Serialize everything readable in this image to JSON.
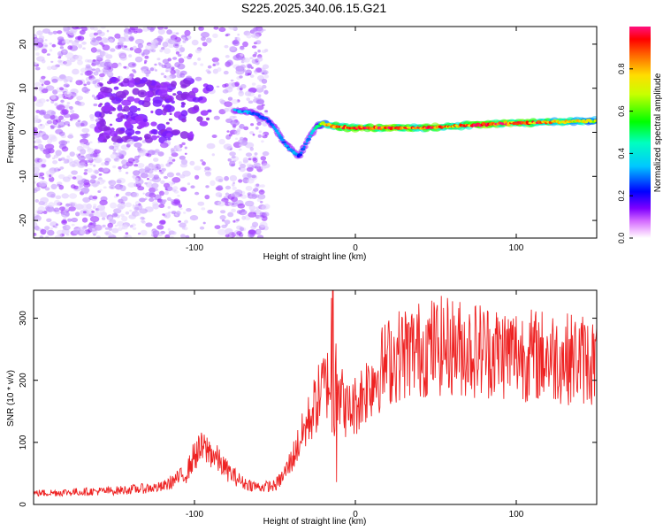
{
  "figure_title": "S225.2025.340.06.15.G21",
  "chart_data": [
    {
      "type": "heatmap",
      "title": "",
      "xlabel": "Height of straight line (km)",
      "ylabel": "Frequency (Hz)",
      "xlim": [
        -200,
        150
      ],
      "ylim": [
        -24,
        24
      ],
      "xticks": [
        -100,
        0,
        100
      ],
      "yticks": [
        -20,
        -10,
        0,
        10,
        20
      ],
      "colorbar": {
        "label": "Normalized spectral amplitude",
        "range": [
          0,
          1
        ],
        "ticks": [
          "0.0",
          "0.2",
          "0.4",
          "0.6",
          "0.8"
        ],
        "tick_values": [
          0,
          0.2,
          0.4,
          0.6,
          0.8
        ]
      },
      "ridge": {
        "x": [
          -75,
          -65,
          -55,
          -50,
          -45,
          -40,
          -35,
          -30,
          -25,
          -20,
          -15,
          -10,
          0,
          10,
          20,
          30,
          40,
          50,
          60,
          70,
          80,
          90,
          100,
          110,
          120,
          130,
          140,
          150
        ],
        "freq": [
          5,
          4.5,
          3,
          1,
          -2,
          -4,
          -5.5,
          -2,
          1,
          2,
          1.5,
          1.2,
          1,
          1,
          1,
          1,
          1,
          1.2,
          1.4,
          1.6,
          1.8,
          2,
          2.1,
          2.2,
          2.3,
          2.4,
          2.5,
          2.6
        ],
        "amplitude": [
          0.35,
          0.3,
          0.25,
          0.3,
          0.3,
          0.32,
          0.28,
          0.3,
          0.4,
          0.7,
          0.8,
          0.85,
          0.9,
          0.9,
          0.95,
          0.9,
          0.85,
          0.9,
          0.8,
          0.85,
          0.95,
          0.9,
          0.85,
          0.9,
          0.8,
          0.75,
          0.7,
          0.7
        ]
      },
      "noise_region": {
        "x_start": -200,
        "x_end": -55,
        "amplitude_max": 0.2
      }
    },
    {
      "type": "line",
      "title": "",
      "xlabel": "Height of straight line (km)",
      "ylabel": "SNR (10 * v/v)",
      "xlim": [
        -200,
        150
      ],
      "ylim": [
        0,
        345
      ],
      "xticks": [
        -100,
        0,
        100
      ],
      "yticks": [
        0,
        100,
        200,
        300
      ],
      "series": [
        {
          "name": "SNR",
          "color": "#ee2222",
          "x": [
            -200,
            -150,
            -120,
            -105,
            -100,
            -95,
            -90,
            -85,
            -80,
            -70,
            -60,
            -50,
            -45,
            -40,
            -35,
            -30,
            -25,
            -20,
            -15,
            -13,
            -10,
            -5,
            0,
            5,
            10,
            20,
            30,
            40,
            50,
            60,
            70,
            80,
            90,
            100,
            110,
            120,
            130,
            140,
            150
          ],
          "y": [
            18,
            22,
            28,
            50,
            80,
            90,
            85,
            70,
            55,
            35,
            28,
            30,
            45,
            70,
            100,
            130,
            160,
            190,
            200,
            340,
            180,
            150,
            160,
            180,
            200,
            230,
            245,
            250,
            255,
            255,
            250,
            250,
            245,
            245,
            240,
            240,
            235,
            235,
            230
          ]
        }
      ]
    }
  ],
  "colors": {
    "line": "#ee2222",
    "axis": "#000000",
    "noise": "#9b30ff",
    "colormap": [
      "#ffffff",
      "#ff00ff",
      "#8000ff",
      "#0000ff",
      "#00ffff",
      "#00ff00",
      "#ffff00",
      "#ff0000",
      "#ff0080"
    ]
  }
}
